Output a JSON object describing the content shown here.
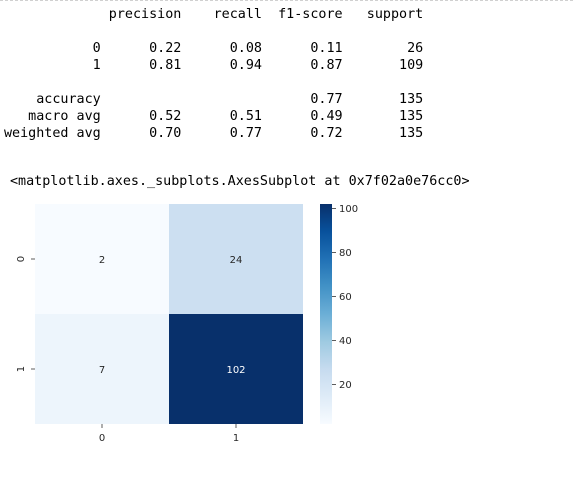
{
  "report": {
    "header": [
      "precision",
      "recall",
      "f1-score",
      "support"
    ],
    "rows": [
      {
        "label": "0",
        "precision": "0.22",
        "recall": "0.08",
        "f1": "0.11",
        "support": "26"
      },
      {
        "label": "1",
        "precision": "0.81",
        "recall": "0.94",
        "f1": "0.87",
        "support": "109"
      },
      {
        "label": "",
        "precision": "",
        "recall": "",
        "f1": "",
        "support": ""
      },
      {
        "label": "accuracy",
        "precision": "",
        "recall": "",
        "f1": "0.77",
        "support": "135"
      },
      {
        "label": "macro avg",
        "precision": "0.52",
        "recall": "0.51",
        "f1": "0.49",
        "support": "135"
      },
      {
        "label": "weighted avg",
        "precision": "0.70",
        "recall": "0.77",
        "f1": "0.72",
        "support": "135"
      }
    ]
  },
  "repr_text": "<matplotlib.axes._subplots.AxesSubplot at 0x7f02a0e76cc0>",
  "chart_data": {
    "type": "heatmap",
    "x_ticks": [
      "0",
      "1"
    ],
    "y_ticks": [
      "0",
      "1"
    ],
    "values": [
      [
        2,
        24
      ],
      [
        7,
        102
      ]
    ],
    "colormap": "Blues",
    "vmin": 2,
    "vmax": 102,
    "colorbar_ticks": [
      20,
      40,
      60,
      80,
      100
    ],
    "annotations": true
  }
}
